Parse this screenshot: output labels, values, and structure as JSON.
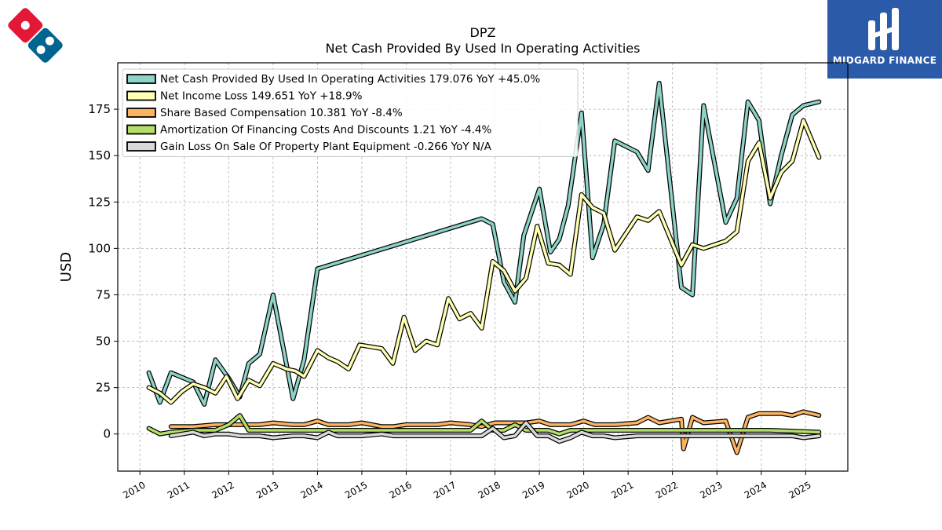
{
  "chart_data": {
    "type": "line",
    "title": "DPZ",
    "subtitle": "Net Cash Provided By Used In Operating Activities",
    "ylabel": "USD",
    "xlabel": "",
    "ylim": [
      -20,
      200
    ],
    "xlim": [
      2009.5,
      2025.95
    ],
    "y_ticks": [
      0,
      25,
      50,
      75,
      100,
      125,
      150,
      175
    ],
    "x_ticks": [
      2010,
      2011,
      2012,
      2013,
      2014,
      2015,
      2016,
      2017,
      2018,
      2019,
      2020,
      2021,
      2022,
      2023,
      2024,
      2025
    ],
    "grid": true,
    "legend_position": "top-left",
    "series": [
      {
        "name": "Net Cash Provided By Used In Operating Activities",
        "legend": "Net Cash Provided By Used In Operating Activities  179.076 YoY +45.0%",
        "color": "#8dd3c7",
        "points": [
          [
            2010.2,
            33
          ],
          [
            2010.45,
            17
          ],
          [
            2010.7,
            33
          ],
          [
            2011.2,
            28
          ],
          [
            2011.45,
            16
          ],
          [
            2011.7,
            40
          ],
          [
            2012.0,
            30
          ],
          [
            2012.25,
            20
          ],
          [
            2012.45,
            38
          ],
          [
            2012.7,
            43
          ],
          [
            2013.0,
            75
          ],
          [
            2013.45,
            19
          ],
          [
            2013.7,
            40
          ],
          [
            2014.0,
            89
          ],
          [
            2017.7,
            116
          ],
          [
            2017.95,
            113
          ],
          [
            2018.2,
            82
          ],
          [
            2018.45,
            71
          ],
          [
            2018.65,
            107
          ],
          [
            2019.0,
            132
          ],
          [
            2019.25,
            98
          ],
          [
            2019.45,
            105
          ],
          [
            2019.65,
            123
          ],
          [
            2019.95,
            173
          ],
          [
            2020.2,
            95
          ],
          [
            2020.45,
            113
          ],
          [
            2020.7,
            158
          ],
          [
            2021.2,
            152
          ],
          [
            2021.45,
            142
          ],
          [
            2021.7,
            189
          ],
          [
            2022.2,
            79
          ],
          [
            2022.45,
            75
          ],
          [
            2022.7,
            177
          ],
          [
            2023.2,
            114
          ],
          [
            2023.45,
            127
          ],
          [
            2023.7,
            179
          ],
          [
            2023.95,
            169
          ],
          [
            2024.2,
            124
          ],
          [
            2024.45,
            150
          ],
          [
            2024.7,
            172
          ],
          [
            2024.95,
            177
          ],
          [
            2025.3,
            179
          ]
        ]
      },
      {
        "name": "Net Income Loss",
        "legend": "Net Income Loss  149.651 YoY +18.9%",
        "color": "#ffffb3",
        "points": [
          [
            2010.2,
            25
          ],
          [
            2010.45,
            22
          ],
          [
            2010.7,
            17
          ],
          [
            2010.95,
            23
          ],
          [
            2011.2,
            27
          ],
          [
            2011.45,
            25
          ],
          [
            2011.7,
            22
          ],
          [
            2011.95,
            31
          ],
          [
            2012.2,
            19
          ],
          [
            2012.45,
            29
          ],
          [
            2012.7,
            26
          ],
          [
            2013.0,
            38
          ],
          [
            2013.3,
            35
          ],
          [
            2013.5,
            34
          ],
          [
            2013.7,
            31
          ],
          [
            2014.0,
            45
          ],
          [
            2014.25,
            41
          ],
          [
            2014.45,
            39
          ],
          [
            2014.7,
            35
          ],
          [
            2014.95,
            48
          ],
          [
            2015.2,
            47
          ],
          [
            2015.45,
            46
          ],
          [
            2015.7,
            38
          ],
          [
            2015.95,
            63
          ],
          [
            2016.2,
            45
          ],
          [
            2016.45,
            50
          ],
          [
            2016.7,
            48
          ],
          [
            2016.95,
            73
          ],
          [
            2017.2,
            62
          ],
          [
            2017.45,
            65
          ],
          [
            2017.7,
            57
          ],
          [
            2017.95,
            93
          ],
          [
            2018.2,
            88
          ],
          [
            2018.45,
            77
          ],
          [
            2018.7,
            84
          ],
          [
            2018.95,
            112
          ],
          [
            2019.2,
            92
          ],
          [
            2019.45,
            91
          ],
          [
            2019.7,
            86
          ],
          [
            2019.95,
            129
          ],
          [
            2020.2,
            122
          ],
          [
            2020.45,
            119
          ],
          [
            2020.7,
            99
          ],
          [
            2021.2,
            117
          ],
          [
            2021.45,
            115
          ],
          [
            2021.7,
            120
          ],
          [
            2022.2,
            91
          ],
          [
            2022.45,
            102
          ],
          [
            2022.7,
            100
          ],
          [
            2023.2,
            104
          ],
          [
            2023.45,
            109
          ],
          [
            2023.7,
            147
          ],
          [
            2023.95,
            157
          ],
          [
            2024.2,
            127
          ],
          [
            2024.45,
            141
          ],
          [
            2024.7,
            147
          ],
          [
            2024.95,
            169
          ],
          [
            2025.3,
            149
          ]
        ]
      },
      {
        "name": "Share Based Compensation",
        "legend": "Share Based Compensation  10.381 YoY -8.4%",
        "color": "#fdb462",
        "points": [
          [
            2010.7,
            4
          ],
          [
            2011.2,
            4
          ],
          [
            2011.7,
            5
          ],
          [
            2012.2,
            5
          ],
          [
            2012.7,
            5
          ],
          [
            2013.0,
            6
          ],
          [
            2013.45,
            5
          ],
          [
            2013.7,
            5
          ],
          [
            2014.0,
            7
          ],
          [
            2014.25,
            5
          ],
          [
            2014.7,
            5
          ],
          [
            2015.0,
            6
          ],
          [
            2015.45,
            4
          ],
          [
            2015.7,
            4
          ],
          [
            2016.0,
            5
          ],
          [
            2016.45,
            5
          ],
          [
            2016.7,
            5
          ],
          [
            2017.0,
            6
          ],
          [
            2017.45,
            5
          ],
          [
            2017.7,
            4
          ],
          [
            2018.0,
            6
          ],
          [
            2018.45,
            6
          ],
          [
            2018.7,
            6
          ],
          [
            2019.0,
            7
          ],
          [
            2019.25,
            5
          ],
          [
            2019.7,
            5
          ],
          [
            2020.0,
            7
          ],
          [
            2020.25,
            5
          ],
          [
            2020.7,
            5
          ],
          [
            2021.2,
            6
          ],
          [
            2021.45,
            9
          ],
          [
            2021.7,
            6
          ],
          [
            2022.2,
            8
          ],
          [
            2022.25,
            -8
          ],
          [
            2022.45,
            9
          ],
          [
            2022.7,
            6
          ],
          [
            2023.2,
            7
          ],
          [
            2023.45,
            -10
          ],
          [
            2023.7,
            9
          ],
          [
            2023.95,
            11
          ],
          [
            2024.2,
            11
          ],
          [
            2024.45,
            11
          ],
          [
            2024.7,
            10
          ],
          [
            2024.95,
            12
          ],
          [
            2025.3,
            10
          ]
        ]
      },
      {
        "name": "Amortization Of Financing Costs And Discounts",
        "legend": "Amortization Of Financing Costs And Discounts  1.21 YoY -4.4%",
        "color": "#b3de69",
        "points": [
          [
            2010.2,
            3
          ],
          [
            2010.45,
            0
          ],
          [
            2010.7,
            1
          ],
          [
            2011.2,
            2
          ],
          [
            2011.7,
            2
          ],
          [
            2012.0,
            5
          ],
          [
            2012.25,
            10
          ],
          [
            2012.45,
            2
          ],
          [
            2012.7,
            2
          ],
          [
            2013.0,
            2
          ],
          [
            2014.0,
            2
          ],
          [
            2016.0,
            2
          ],
          [
            2017.45,
            2
          ],
          [
            2017.7,
            7
          ],
          [
            2017.95,
            2
          ],
          [
            2018.2,
            2
          ],
          [
            2018.45,
            5
          ],
          [
            2018.7,
            2
          ],
          [
            2019.2,
            2
          ],
          [
            2019.45,
            0
          ],
          [
            2019.7,
            2
          ],
          [
            2020.2,
            2
          ],
          [
            2020.7,
            2
          ],
          [
            2021.2,
            2
          ],
          [
            2021.45,
            2
          ],
          [
            2021.7,
            2
          ],
          [
            2022.2,
            2
          ],
          [
            2023.2,
            2
          ],
          [
            2024.2,
            2
          ],
          [
            2025.3,
            1
          ]
        ]
      },
      {
        "name": "Gain Loss On Sale Of Property Plant Equipment",
        "legend": "Gain Loss On Sale Of Property Plant Equipment  -0.266 YoY N/A",
        "color": "#d9d9d9",
        "points": [
          [
            2010.7,
            -1
          ],
          [
            2011.2,
            1
          ],
          [
            2011.45,
            -1
          ],
          [
            2011.7,
            0
          ],
          [
            2012.0,
            0
          ],
          [
            2012.25,
            -1
          ],
          [
            2012.7,
            -1
          ],
          [
            2013.0,
            -2
          ],
          [
            2013.45,
            -1
          ],
          [
            2013.7,
            -1
          ],
          [
            2014.0,
            -2
          ],
          [
            2014.25,
            1
          ],
          [
            2014.45,
            -1
          ],
          [
            2014.7,
            -1
          ],
          [
            2015.0,
            -1
          ],
          [
            2015.45,
            0
          ],
          [
            2015.7,
            -1
          ],
          [
            2016.0,
            -1
          ],
          [
            2016.45,
            -1
          ],
          [
            2017.7,
            -1
          ],
          [
            2017.95,
            3
          ],
          [
            2018.2,
            -2
          ],
          [
            2018.45,
            -1
          ],
          [
            2018.7,
            6
          ],
          [
            2018.95,
            -1
          ],
          [
            2019.2,
            -1
          ],
          [
            2019.45,
            -4
          ],
          [
            2019.7,
            -2
          ],
          [
            2019.95,
            1
          ],
          [
            2020.2,
            -1
          ],
          [
            2020.45,
            -1
          ],
          [
            2020.7,
            -2
          ],
          [
            2021.2,
            -1
          ],
          [
            2021.45,
            -1
          ],
          [
            2022.2,
            -1
          ],
          [
            2022.45,
            -1
          ],
          [
            2023.2,
            -1
          ],
          [
            2023.7,
            -1
          ],
          [
            2024.2,
            -1
          ],
          [
            2024.45,
            -1
          ],
          [
            2024.7,
            -1
          ],
          [
            2024.95,
            -2
          ],
          [
            2025.3,
            -1
          ]
        ]
      }
    ]
  },
  "branding": {
    "right_logo_text": "MIDGARD FINANCE"
  }
}
